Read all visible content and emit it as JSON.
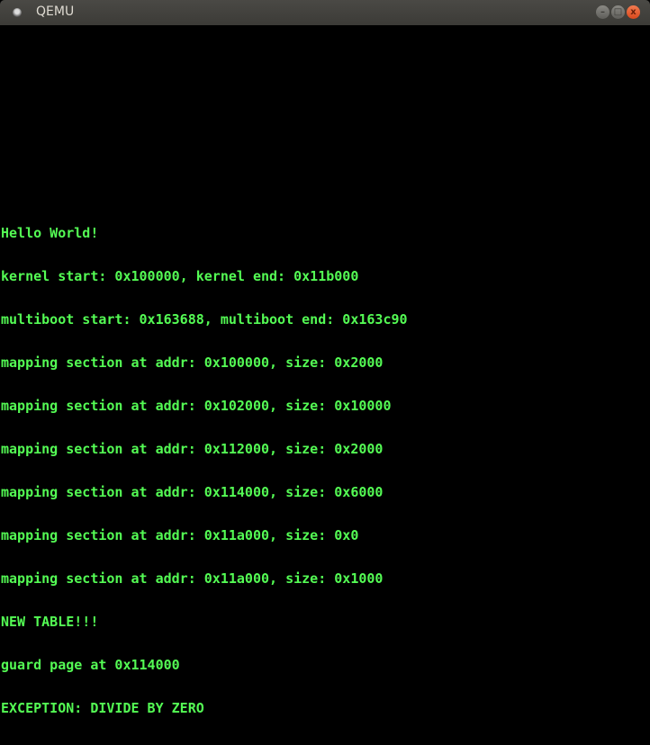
{
  "window": {
    "title": "QEMU",
    "buttons": {
      "minimize": "–",
      "maximize": "□",
      "close": "x"
    }
  },
  "colors": {
    "console_text": "#54fc54",
    "background": "#000000",
    "close_button": "#e9552a"
  },
  "console": {
    "lines": [
      "Hello World!",
      "kernel start: 0x100000, kernel end: 0x11b000",
      "multiboot start: 0x163688, multiboot end: 0x163c90",
      "mapping section at addr: 0x100000, size: 0x2000",
      "mapping section at addr: 0x102000, size: 0x10000",
      "mapping section at addr: 0x112000, size: 0x2000",
      "mapping section at addr: 0x114000, size: 0x6000",
      "mapping section at addr: 0x11a000, size: 0x0",
      "mapping section at addr: 0x11a000, size: 0x1000",
      "NEW TABLE!!!",
      "guard page at 0x114000",
      "EXCEPTION: DIVIDE BY ZERO"
    ]
  }
}
